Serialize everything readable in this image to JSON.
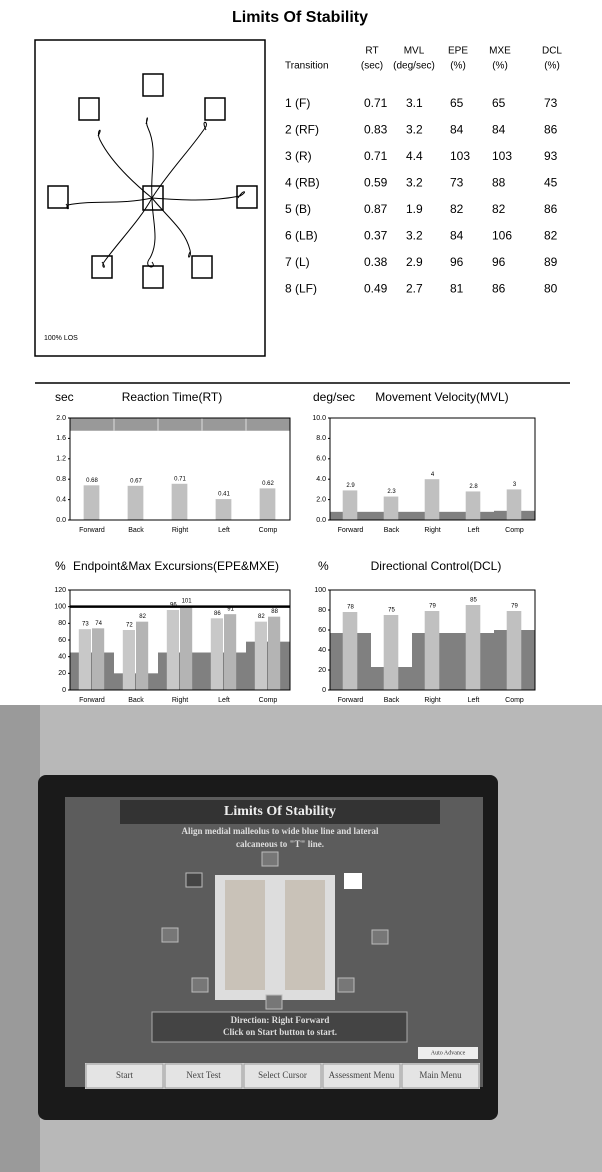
{
  "title": "Limits Of Stability",
  "trace_label": "100% LOS",
  "table": {
    "columns": [
      {
        "name": "Transition"
      },
      {
        "name": "RT",
        "unit": "(sec)"
      },
      {
        "name": "MVL",
        "unit": "(deg/sec)"
      },
      {
        "name": "EPE",
        "unit": "(%)"
      },
      {
        "name": "MXE",
        "unit": "(%)"
      },
      {
        "name": "DCL",
        "unit": "(%)"
      }
    ],
    "rows": [
      [
        "1 (F)",
        "0.71",
        "3.1",
        "65",
        "65",
        "73"
      ],
      [
        "2 (RF)",
        "0.83",
        "3.2",
        "84",
        "84",
        "86"
      ],
      [
        "3 (R)",
        "0.71",
        "4.4",
        "103",
        "103",
        "93"
      ],
      [
        "4 (RB)",
        "0.59",
        "3.2",
        "73",
        "88",
        "45"
      ],
      [
        "5 (B)",
        "0.87",
        "1.9",
        "82",
        "82",
        "86"
      ],
      [
        "6 (LB)",
        "0.37",
        "3.2",
        "84",
        "106",
        "82"
      ],
      [
        "7 (L)",
        "0.38",
        "2.9",
        "96",
        "96",
        "89"
      ],
      [
        "8 (LF)",
        "0.49",
        "2.7",
        "81",
        "86",
        "80"
      ]
    ]
  },
  "chart_data": [
    {
      "type": "bar",
      "unit": "sec",
      "title": "Reaction Time(RT)",
      "categories": [
        "Forward",
        "Back",
        "Right",
        "Left",
        "Comp"
      ],
      "series": [
        {
          "color": "#c0c0c0",
          "values": [
            0.68,
            0.67,
            0.71,
            0.41,
            0.62
          ]
        }
      ],
      "band": [
        1.75,
        2.0
      ],
      "ylim": [
        0,
        2.0
      ],
      "yticks": [
        {
          "value": 0,
          "label": "0.0"
        },
        {
          "value": 0.4,
          "label": "0.4"
        },
        {
          "value": 0.8,
          "label": "0.8"
        },
        {
          "value": 1.2,
          "label": "1.2"
        },
        {
          "value": 1.6,
          "label": "1.6"
        },
        {
          "value": 2.0,
          "label": "2.0"
        }
      ]
    },
    {
      "type": "bar",
      "unit": "deg/sec",
      "title": "Movement Velocity(MVL)",
      "categories": [
        "Forward",
        "Back",
        "Right",
        "Left",
        "Comp"
      ],
      "series": [
        {
          "color": "#c0c0c0",
          "values": [
            2.9,
            2.3,
            4,
            2.8,
            3
          ]
        }
      ],
      "norm": {
        "color": "#808080",
        "values": [
          0.8,
          0.8,
          0.8,
          0.8,
          0.9
        ]
      },
      "ylim": [
        0,
        10
      ],
      "yticks": [
        {
          "value": 0,
          "label": "0.0"
        },
        {
          "value": 2,
          "label": "2.0"
        },
        {
          "value": 4,
          "label": "4.0"
        },
        {
          "value": 6,
          "label": "6.0"
        },
        {
          "value": 8,
          "label": "8.0"
        },
        {
          "value": 10,
          "label": "10.0"
        }
      ]
    },
    {
      "type": "bar",
      "unit": "%",
      "title": "Endpoint&Max Excursions(EPE&MXE)",
      "categories": [
        "Forward",
        "Back",
        "Right",
        "Left",
        "Comp"
      ],
      "series": [
        {
          "color": "#c8c8c8",
          "values": [
            73,
            72,
            96,
            86,
            82
          ]
        },
        {
          "color": "#b4b4b4",
          "values": [
            74,
            82,
            101,
            91,
            88
          ]
        }
      ],
      "norm": {
        "color": "#808080",
        "values": [
          45,
          20,
          45,
          45,
          58
        ]
      },
      "reference_line": 100,
      "ylim": [
        0,
        120
      ],
      "yticks": [
        0,
        20,
        40,
        60,
        80,
        100,
        120
      ]
    },
    {
      "type": "bar",
      "unit": "%",
      "title": "Directional Control(DCL)",
      "categories": [
        "Forward",
        "Back",
        "Right",
        "Left",
        "Comp"
      ],
      "series": [
        {
          "color": "#c0c0c0",
          "values": [
            78,
            75,
            79,
            85,
            79
          ]
        }
      ],
      "norm": {
        "color": "#808080",
        "values": [
          57,
          23,
          57,
          57,
          60
        ]
      },
      "ylim": [
        0,
        100
      ],
      "yticks": [
        0,
        20,
        40,
        60,
        80,
        100
      ]
    }
  ],
  "photo": {
    "screen_title": "Limits Of Stability",
    "instruction": [
      "Align medial malleolus to wide blue line and lateral",
      "calcaneous to \"T\" line."
    ],
    "direction": "Direction: Right Forward",
    "prompt": "Click on Start button to start.",
    "auto_advance": "Auto Advance",
    "buttons": [
      "Start",
      "Next Test",
      "Select Cursor",
      "Assessment Menu",
      "Main Menu"
    ]
  }
}
